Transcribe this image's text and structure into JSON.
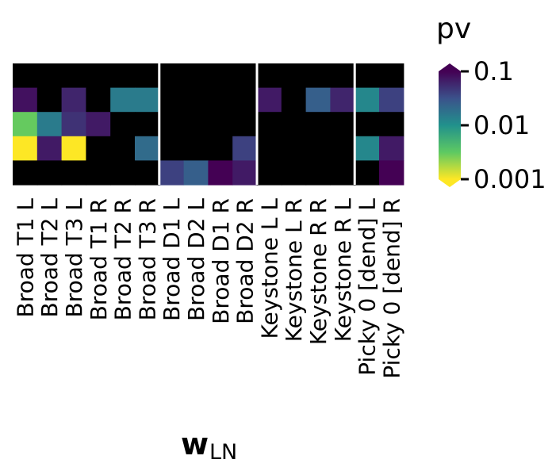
{
  "chart_data": {
    "type": "heatmap",
    "xlabel": "w",
    "xlabel_subscript": "LN",
    "x_categories": [
      "Broad T1 L",
      "Broad T2 L",
      "Broad T3 L",
      "Broad T1 R",
      "Broad T2 R",
      "Broad T3 R",
      "Broad D1 L",
      "Broad D2 L",
      "Broad D1 R",
      "Broad D2 R",
      "Keystone L L",
      "Keystone L R",
      "Keystone R R",
      "Keystone R L",
      "Picky 0 [dend] L",
      "Picky 0 [dend] R"
    ],
    "column_groups": [
      6,
      4,
      4,
      2
    ],
    "row_count": 5,
    "values_note_not_shown": "",
    "values": [
      [
        null,
        null,
        null,
        null,
        null,
        null,
        null,
        null,
        null,
        null,
        null,
        null,
        null,
        null,
        null,
        null
      ],
      [
        0.08,
        null,
        0.06,
        null,
        0.015,
        0.015,
        null,
        null,
        null,
        null,
        0.07,
        null,
        0.025,
        0.06,
        0.012,
        0.04
      ],
      [
        0.003,
        0.015,
        0.05,
        0.07,
        null,
        null,
        null,
        null,
        null,
        null,
        null,
        null,
        null,
        null,
        null,
        null
      ],
      [
        0.001,
        0.07,
        0.001,
        null,
        null,
        0.02,
        null,
        null,
        null,
        0.04,
        null,
        null,
        null,
        null,
        0.012,
        0.07
      ],
      [
        null,
        null,
        null,
        null,
        null,
        null,
        0.04,
        0.025,
        0.1,
        0.07,
        null,
        null,
        null,
        null,
        null,
        0.1
      ]
    ],
    "missing_color": "#000000",
    "colorbar": {
      "title": "pv",
      "scale": "log",
      "range": [
        0.001,
        0.1
      ],
      "ticks": [
        0.1,
        0.01,
        0.001
      ],
      "tick_labels": [
        "0.1",
        "0.01",
        "0.001"
      ],
      "colormap": "viridis_r",
      "extend": "both",
      "colors": [
        "#fde725",
        "#5ec962",
        "#21918c",
        "#3b528b",
        "#440154"
      ]
    }
  }
}
